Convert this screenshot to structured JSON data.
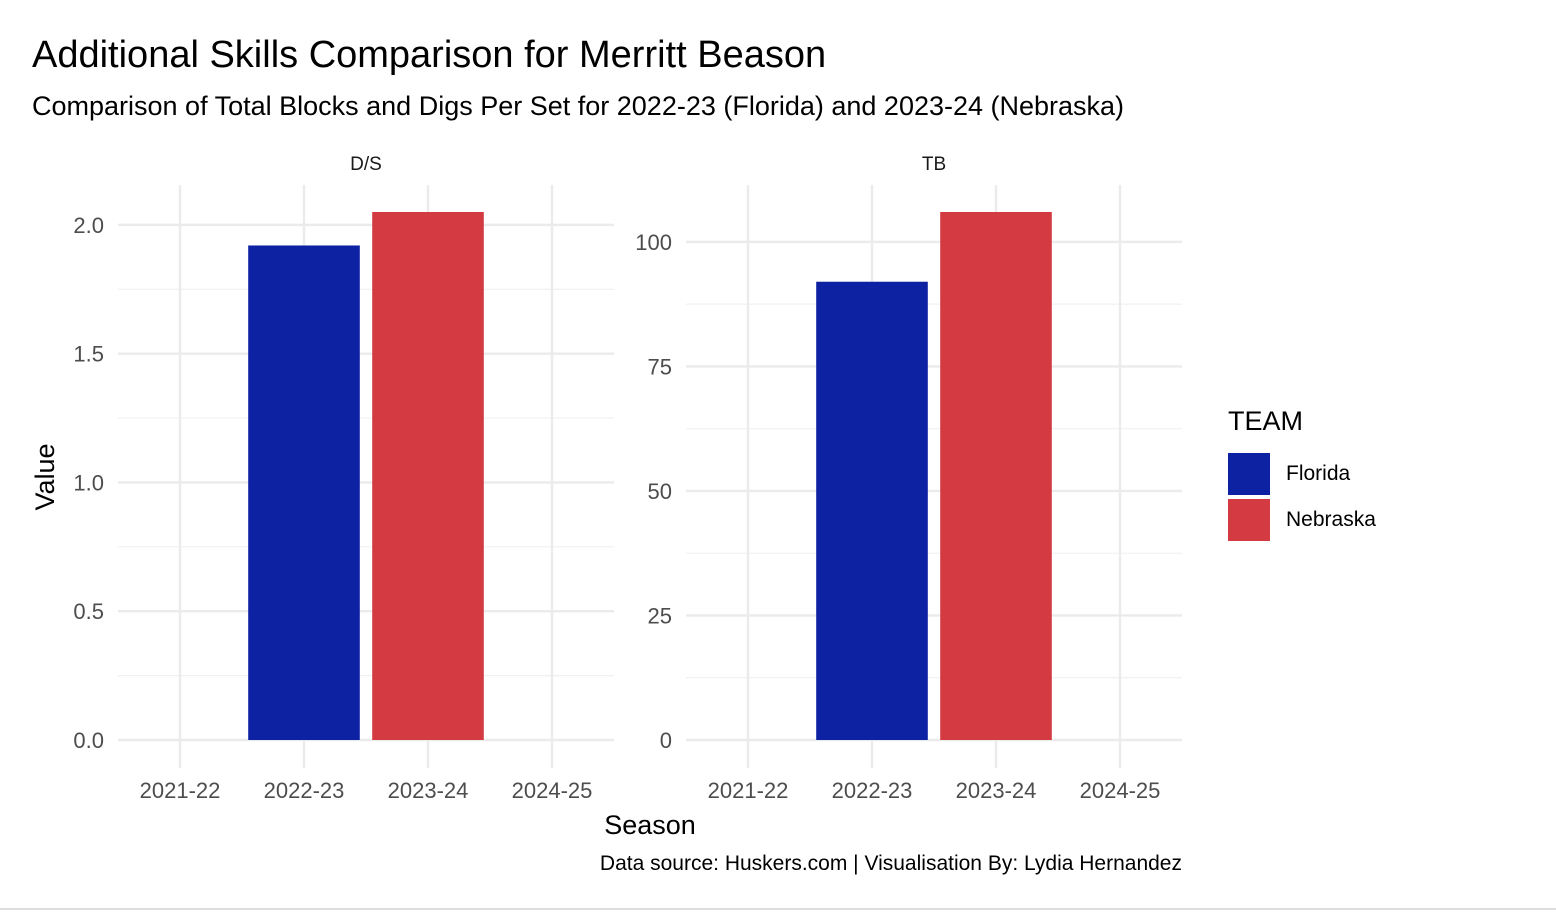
{
  "title": "Additional Skills Comparison for Merritt Beason",
  "subtitle": "Comparison of Total Blocks and Digs Per Set for 2022-23 (Florida) and 2023-24 (Nebraska)",
  "caption": "Data source: Huskers.com | Visualisation By: Lydia Hernandez",
  "legend": {
    "title": "TEAM",
    "position": "right",
    "items": [
      {
        "label": "Florida",
        "color": "#0c22a3"
      },
      {
        "label": "Nebraska",
        "color": "#d43a42"
      }
    ]
  },
  "chart_data": {
    "type": "bar",
    "xlabel": "Season",
    "ylabel": "Value",
    "grid": true,
    "categories": [
      "2021-22",
      "2022-23",
      "2023-24",
      "2024-25"
    ],
    "panels": [
      {
        "name": "D/S",
        "ylim": [
          0,
          2.05
        ],
        "yticks": [
          0,
          0.5,
          1,
          1.5,
          2
        ],
        "ytick_labels": [
          "0.0",
          "0.5",
          "1.0",
          "1.5",
          "2.0"
        ],
        "bars": [
          {
            "category": "2022-23",
            "team": "Florida",
            "value": 1.92
          },
          {
            "category": "2023-24",
            "team": "Nebraska",
            "value": 2.05
          }
        ]
      },
      {
        "name": "TB",
        "ylim": [
          0,
          106
        ],
        "yticks": [
          0,
          25,
          50,
          75,
          100
        ],
        "ytick_labels": [
          "0",
          "25",
          "50",
          "75",
          "100"
        ],
        "bars": [
          {
            "category": "2022-23",
            "team": "Florida",
            "value": 92
          },
          {
            "category": "2023-24",
            "team": "Nebraska",
            "value": 106
          }
        ]
      }
    ]
  }
}
